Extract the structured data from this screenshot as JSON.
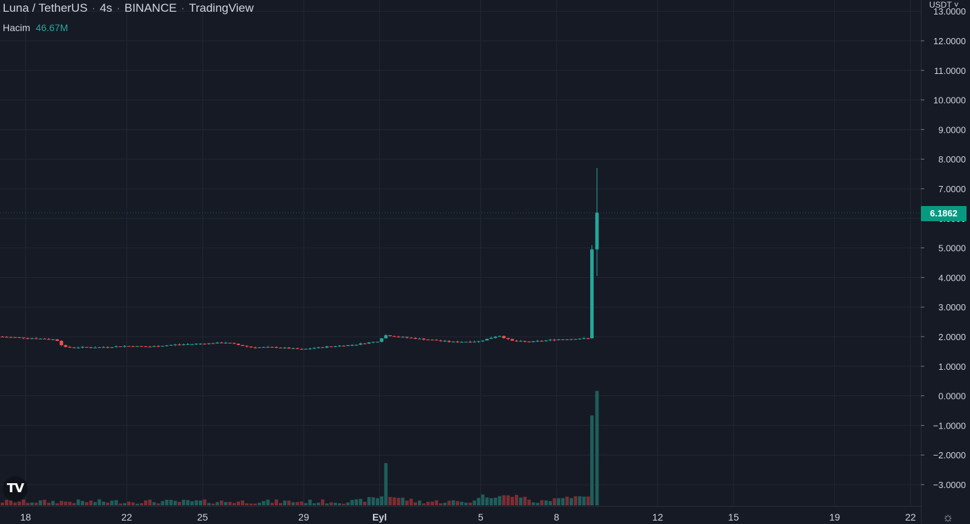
{
  "header": {
    "symbol": "Luna / TetherUS",
    "interval": "4s",
    "exchange": "BINANCE",
    "source": "TradingView",
    "separator": "·"
  },
  "volume_legend": {
    "label": "Hacim",
    "value": "46.67M"
  },
  "currency": "USDT",
  "last_price_label": "6.1862",
  "logo_text": "TV",
  "colors": {
    "background": "#161a25",
    "grid": "#232734",
    "up": "#26a69a",
    "down": "#ef5350",
    "up_volume": "#1f5d5b",
    "down_volume": "#7a2e34",
    "last_price": "#089981"
  },
  "chart_data": {
    "type": "candlestick",
    "y_ticks": [
      "12.0000",
      "11.0000",
      "10.0000",
      "9.0000",
      "8.0000",
      "7.0000",
      "6.0000",
      "5.0000",
      "4.0000",
      "3.0000",
      "2.0000",
      "1.0000",
      "0.0000",
      "−1.0000",
      "−2.0000",
      "−3.0000"
    ],
    "y_tick_values": [
      12,
      11,
      10,
      9,
      8,
      7,
      6,
      5,
      4,
      3,
      2,
      1,
      0,
      -1,
      -2,
      -3
    ],
    "y_top_partial": "13.0000",
    "ylim": [
      -3.8,
      13.5
    ],
    "x_ticks": [
      {
        "label": "18",
        "day": 18
      },
      {
        "label": "22",
        "day": 22
      },
      {
        "label": "25",
        "day": 25
      },
      {
        "label": "29",
        "day": 29
      },
      {
        "label": "Eyl",
        "day": 32,
        "bold": true
      },
      {
        "label": "5",
        "day": 36
      },
      {
        "label": "8",
        "day": 39
      },
      {
        "label": "12",
        "day": 43
      },
      {
        "label": "15",
        "day": 46
      },
      {
        "label": "19",
        "day": 50
      },
      {
        "label": "22",
        "day": 53
      }
    ],
    "x_range_days": [
      17,
      54.5
    ],
    "price_path": [
      [
        17.0,
        2.0
      ],
      [
        18.5,
        1.94
      ],
      [
        19.3,
        1.9
      ],
      [
        19.6,
        1.64
      ],
      [
        21,
        1.64
      ],
      [
        22,
        1.68
      ],
      [
        23,
        1.66
      ],
      [
        24,
        1.73
      ],
      [
        25,
        1.76
      ],
      [
        26,
        1.8
      ],
      [
        27,
        1.64
      ],
      [
        28,
        1.64
      ],
      [
        29,
        1.57
      ],
      [
        30,
        1.66
      ],
      [
        31,
        1.72
      ],
      [
        32,
        1.84
      ],
      [
        32.3,
        2.05
      ],
      [
        33,
        1.98
      ],
      [
        34,
        1.9
      ],
      [
        35,
        1.82
      ],
      [
        36,
        1.84
      ],
      [
        36.8,
        2.04
      ],
      [
        37.3,
        1.86
      ],
      [
        38,
        1.82
      ],
      [
        39,
        1.9
      ],
      [
        40.2,
        1.94
      ]
    ],
    "spike_candles": [
      {
        "day": 40.4,
        "open": 1.95,
        "high": 5.1,
        "low": 1.92,
        "close": 4.95
      },
      {
        "day": 40.6,
        "open": 4.95,
        "high": 7.7,
        "low": 4.05,
        "close": 6.19
      }
    ],
    "volume_max_millions": 46.67,
    "volume_spikes": [
      {
        "day": 32.2,
        "value": 15.5
      },
      {
        "day": 40.4,
        "value": 33.0
      },
      {
        "day": 40.6,
        "value": 42.0
      }
    ],
    "last_price": 6.1862
  }
}
